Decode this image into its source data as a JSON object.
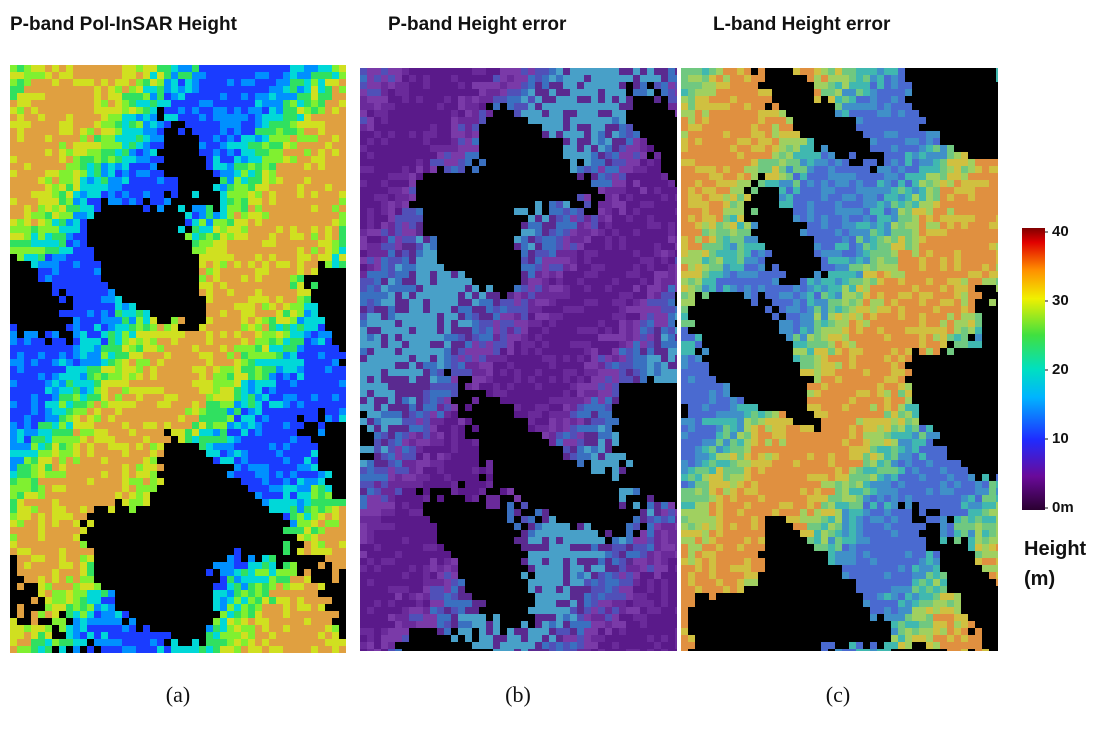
{
  "panels": [
    {
      "title": "P-band Pol-InSAR Height",
      "caption": "(a)"
    },
    {
      "title": "P-band Height error",
      "caption": "(b)"
    },
    {
      "title": "L-band Height error",
      "caption": "(c)"
    }
  ],
  "colorbar": {
    "lim": [
      0,
      40
    ],
    "ticks": [
      {
        "value": 0,
        "label": "0m"
      },
      10,
      20,
      30,
      40
    ],
    "label": [
      "Height",
      "(m)"
    ]
  }
}
